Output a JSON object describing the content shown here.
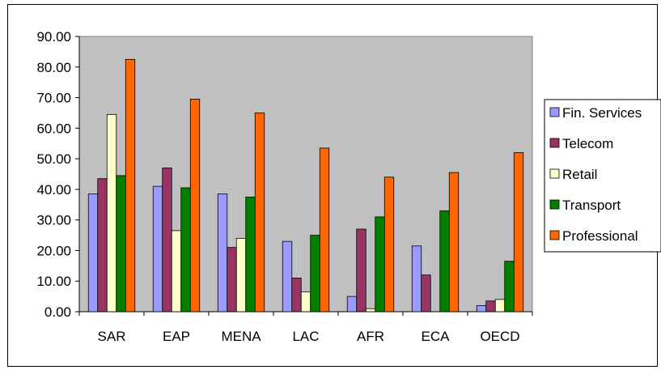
{
  "chart_data": {
    "type": "bar",
    "title": "",
    "xlabel": "",
    "ylabel": "",
    "ylim": [
      0,
      90
    ],
    "y_ticks": [
      "0.00",
      "10.00",
      "20.00",
      "30.00",
      "40.00",
      "50.00",
      "60.00",
      "70.00",
      "80.00",
      "90.00"
    ],
    "grid": false,
    "legend_position": "right",
    "plot_background": "#c0c0c0",
    "categories": [
      "SAR",
      "EAP",
      "MENA",
      "LAC",
      "AFR",
      "ECA",
      "OECD"
    ],
    "series": [
      {
        "name": "Fin. Services",
        "color": "#9999ff",
        "values": [
          38.5,
          41.0,
          38.5,
          23.0,
          5.0,
          21.5,
          2.0
        ]
      },
      {
        "name": "Telecom",
        "color": "#993366",
        "values": [
          43.5,
          47.0,
          21.0,
          11.0,
          27.0,
          12.0,
          3.5
        ]
      },
      {
        "name": "Retail",
        "color": "#ffffcc",
        "values": [
          64.5,
          26.5,
          24.0,
          6.5,
          1.0,
          0.0,
          4.0
        ]
      },
      {
        "name": "Transport",
        "color": "#008000",
        "values": [
          44.5,
          40.5,
          37.5,
          25.0,
          31.0,
          33.0,
          16.5
        ]
      },
      {
        "name": "Professional",
        "color": "#ff6600",
        "values": [
          82.5,
          69.5,
          65.0,
          53.5,
          44.0,
          45.5,
          52.0
        ]
      }
    ]
  }
}
